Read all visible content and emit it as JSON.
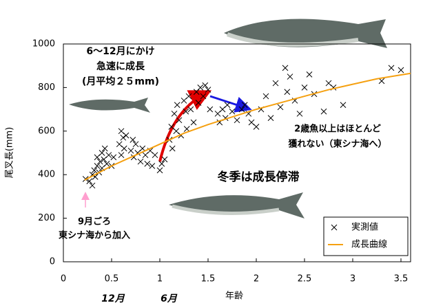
{
  "chart_data": {
    "type": "scatter",
    "xlabel": "年齢",
    "ylabel": "尾叉長(mm)",
    "xlim": [
      0,
      3.6
    ],
    "ylim": [
      0,
      1000
    ],
    "xticks": [
      0,
      0.5,
      1,
      1.5,
      2,
      2.5,
      3,
      3.5
    ],
    "yticks": [
      0,
      200,
      400,
      600,
      800,
      1000
    ],
    "legend": "lower right",
    "series": [
      {
        "name": "実測値",
        "color": "#000000",
        "marker": "x",
        "x": [
          0.23,
          0.27,
          0.3,
          0.3,
          0.32,
          0.33,
          0.35,
          0.35,
          0.37,
          0.38,
          0.4,
          0.4,
          0.42,
          0.43,
          0.45,
          0.47,
          0.5,
          0.52,
          0.58,
          0.6,
          0.6,
          0.62,
          0.63,
          0.65,
          0.7,
          0.72,
          0.73,
          0.75,
          0.77,
          0.8,
          0.82,
          0.85,
          0.87,
          0.9,
          0.92,
          0.95,
          1.0,
          1.02,
          1.05,
          1.1,
          1.12,
          1.13,
          1.15,
          1.17,
          1.18,
          1.2,
          1.22,
          1.25,
          1.27,
          1.28,
          1.3,
          1.32,
          1.35,
          1.38,
          1.4,
          1.42,
          1.45,
          1.47,
          1.5,
          1.52,
          1.6,
          1.62,
          1.65,
          1.68,
          1.7,
          1.75,
          1.8,
          1.85,
          1.88,
          1.92,
          1.95,
          2.0,
          2.05,
          2.1,
          2.15,
          2.2,
          2.25,
          2.3,
          2.32,
          2.35,
          2.4,
          2.45,
          2.5,
          2.55,
          2.6,
          2.7,
          2.75,
          2.8,
          2.9,
          3.3,
          3.4,
          3.5
        ],
        "values": [
          380,
          370,
          400,
          350,
          420,
          390,
          440,
          480,
          410,
          460,
          500,
          430,
          470,
          520,
          450,
          490,
          440,
          480,
          540,
          600,
          490,
          570,
          520,
          580,
          510,
          560,
          480,
          540,
          500,
          460,
          520,
          490,
          450,
          510,
          440,
          490,
          420,
          450,
          470,
          560,
          620,
          520,
          680,
          600,
          720,
          650,
          580,
          740,
          690,
          610,
          760,
          700,
          640,
          780,
          730,
          800,
          760,
          810,
          790,
          700,
          680,
          640,
          700,
          660,
          720,
          690,
          650,
          700,
          720,
          680,
          640,
          620,
          700,
          760,
          660,
          820,
          710,
          890,
          780,
          850,
          740,
          680,
          800,
          860,
          770,
          690,
          820,
          800,
          720,
          830,
          890,
          880
        ]
      },
      {
        "name": "成長曲線",
        "color": "#f5a010",
        "marker": "line",
        "x": [
          0.22,
          0.5,
          0.75,
          1,
          1.25,
          1.5,
          1.75,
          2,
          2.25,
          2.5,
          2.75,
          3,
          3.25,
          3.6
        ],
        "values": [
          375,
          440,
          490,
          540,
          590,
          630,
          665,
          700,
          730,
          760,
          790,
          815,
          840,
          865
        ]
      }
    ],
    "annotations": [
      {
        "lines": [
          "6～12月にかけ",
          "急速に成長",
          "(月平均２５mm)"
        ],
        "color": "#ff0000"
      },
      {
        "lines": [
          "2歳魚以上はほとんど",
          "獲れない（東シナ海へ）"
        ],
        "color": "#008000"
      },
      {
        "lines": [
          "冬季は成長停滞"
        ],
        "color": "#1a1aa0"
      },
      {
        "lines": [
          "9月ごろ",
          "東シナ海から加入"
        ],
        "color": "#ff5fb4"
      },
      {
        "lines": [
          "12月"
        ],
        "color": "#000000"
      },
      {
        "lines": [
          "6月"
        ],
        "color": "#000000"
      }
    ]
  }
}
